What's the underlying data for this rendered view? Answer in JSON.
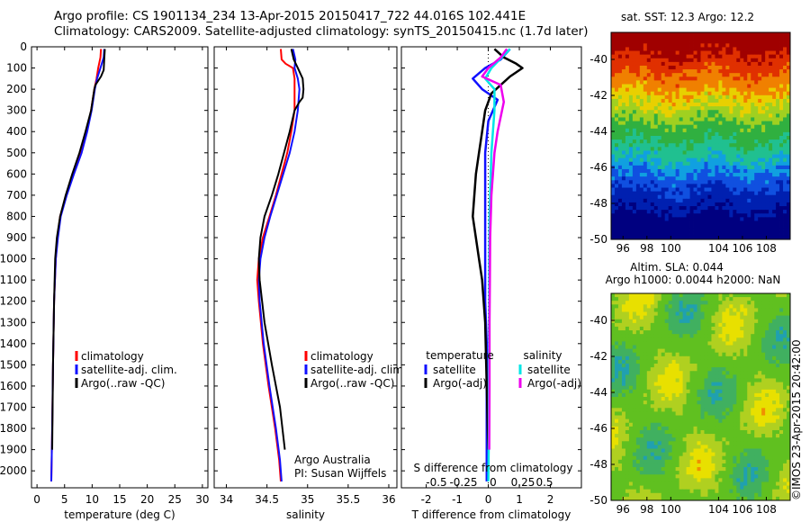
{
  "header": {
    "line1": "Argo profile: CS 1901134_234 13-Apr-2015 20150417_722 44.016S 102.441E",
    "line2": "Climatology: CARS2009. Satellite-adjusted climatology: synTS_20150415.nc (1.7d later)"
  },
  "colors": {
    "climatology": "#ff0000",
    "satellite": "#1010ff",
    "argo": "#000000",
    "sat_salinity": "#00e6e6",
    "argo_salinity": "#ee00ee"
  },
  "chart_data": [
    {
      "type": "line",
      "id": "temperature",
      "xlabel": "temperature (deg C)",
      "ylabel": "",
      "xlim": [
        -1,
        31
      ],
      "ylim": [
        2080,
        0
      ],
      "xticks": [
        0,
        5,
        10,
        15,
        20,
        25,
        30
      ],
      "yticks": [
        0,
        100,
        200,
        300,
        400,
        500,
        600,
        700,
        800,
        900,
        1000,
        1100,
        1200,
        1300,
        1400,
        1500,
        1600,
        1700,
        1800,
        1900,
        2000
      ],
      "legend": [
        "climatology",
        "satellite-adj. clim.",
        "Argo(..raw -QC)"
      ],
      "series": [
        {
          "name": "climatology",
          "color": "#ff0000",
          "width": 2,
          "x": [
            11.6,
            11.5,
            11.1,
            10.8,
            10.4,
            9.8,
            9.0,
            7.9,
            6.5,
            5.3,
            4.2,
            3.7,
            3.4,
            3.1,
            2.9,
            2.75,
            2.6
          ],
          "y": [
            10,
            50,
            100,
            150,
            200,
            300,
            400,
            500,
            600,
            700,
            800,
            900,
            1000,
            1200,
            1500,
            1800,
            2050
          ]
        },
        {
          "name": "satellite-adj. clim.",
          "color": "#1010ff",
          "width": 2,
          "x": [
            12.2,
            12.1,
            11.5,
            10.9,
            10.5,
            9.9,
            9.1,
            8.1,
            6.7,
            5.4,
            4.3,
            3.8,
            3.4,
            3.1,
            2.9,
            2.75,
            2.6
          ],
          "y": [
            10,
            50,
            100,
            150,
            200,
            300,
            400,
            500,
            600,
            700,
            800,
            900,
            1000,
            1200,
            1500,
            1800,
            2050
          ]
        },
        {
          "name": "Argo(..raw -QC)",
          "color": "#000000",
          "width": 2,
          "x": [
            12.3,
            12.2,
            12.1,
            11.6,
            10.6,
            10.4,
            9.8,
            8.8,
            7.7,
            6.4,
            5.2,
            4.2,
            3.6,
            3.3,
            3.1,
            2.9,
            2.75
          ],
          "y": [
            10,
            60,
            110,
            140,
            180,
            200,
            300,
            400,
            500,
            600,
            700,
            800,
            900,
            1000,
            1200,
            1500,
            1900
          ]
        }
      ]
    },
    {
      "type": "line",
      "id": "salinity",
      "xlabel": "salinity",
      "xlim": [
        33.85,
        36.1
      ],
      "ylim": [
        2080,
        0
      ],
      "xticks": [
        34,
        34.5,
        35,
        35.5,
        36
      ],
      "legend": [
        "climatology",
        "satellite-adj. clim.",
        "Argo(..raw -QC)"
      ],
      "annotation": [
        "Argo Australia",
        "PI: Susan Wijffels"
      ],
      "series": [
        {
          "name": "climatology",
          "color": "#ff0000",
          "width": 2,
          "x": [
            34.67,
            34.68,
            34.73,
            34.82,
            34.84,
            34.84,
            34.8,
            34.75,
            34.68,
            34.61,
            34.53,
            34.45,
            34.4,
            34.38,
            34.4,
            34.45,
            34.52,
            34.6,
            34.65,
            34.67
          ],
          "y": [
            10,
            60,
            80,
            100,
            150,
            300,
            400,
            500,
            600,
            700,
            800,
            900,
            1000,
            1100,
            1200,
            1400,
            1600,
            1800,
            1950,
            2050
          ]
        },
        {
          "name": "satellite-adj. clim.",
          "color": "#1010ff",
          "width": 2,
          "x": [
            34.82,
            34.85,
            34.84,
            34.88,
            34.9,
            34.88,
            34.84,
            34.78,
            34.7,
            34.62,
            34.54,
            34.47,
            34.42,
            34.4,
            34.41,
            34.46,
            34.53,
            34.61,
            34.66,
            34.68
          ],
          "y": [
            10,
            60,
            100,
            150,
            200,
            300,
            400,
            500,
            600,
            700,
            800,
            900,
            1000,
            1100,
            1200,
            1400,
            1600,
            1800,
            1950,
            2050
          ]
        },
        {
          "name": "Argo(..raw -QC)",
          "color": "#000000",
          "width": 2,
          "x": [
            34.8,
            34.83,
            34.88,
            34.94,
            34.95,
            34.94,
            34.9,
            34.84,
            34.78,
            34.71,
            34.64,
            34.56,
            34.47,
            34.42,
            34.4,
            34.41,
            34.47,
            34.56,
            34.66,
            34.72
          ],
          "y": [
            10,
            60,
            100,
            150,
            200,
            240,
            260,
            300,
            400,
            500,
            600,
            700,
            800,
            900,
            1000,
            1100,
            1300,
            1500,
            1700,
            1900
          ]
        }
      ]
    },
    {
      "type": "line",
      "id": "differences",
      "xlabel": "T difference from climatology",
      "top_label": "S difference from climatology",
      "xlim": [
        -2.8,
        3.0
      ],
      "ylim": [
        2080,
        0
      ],
      "xticks": [
        -2,
        -1,
        0,
        1,
        2
      ],
      "top_ticks": [
        "-0.5",
        "-0.25",
        "0",
        "0.25",
        "0.5"
      ],
      "legend_titles": [
        "temperature",
        "salinity"
      ],
      "legend": [
        "satellite",
        "Argo(-adj)",
        "satellite",
        "Argo(-adj)"
      ],
      "series": [
        {
          "name": "satellite",
          "group": "temperature",
          "color": "#1010ff",
          "width": 2.5,
          "x": [
            0.7,
            0.4,
            -0.1,
            -0.5,
            -0.2,
            0.3,
            0.0,
            -0.1,
            -0.1,
            -0.1,
            -0.1,
            -0.1,
            -0.1,
            -0.1,
            -0.05,
            -0.05,
            -0.05,
            -0.05,
            -0.05
          ],
          "y": [
            10,
            60,
            100,
            150,
            200,
            250,
            350,
            500,
            700,
            800,
            900,
            1000,
            1100,
            1200,
            1400,
            1600,
            1800,
            1950,
            2050
          ]
        },
        {
          "name": "Argo(-adj)",
          "group": "temperature",
          "color": "#000000",
          "width": 2.5,
          "dashed_to": 1000,
          "x": [
            0.2,
            0.5,
            0.9,
            1.1,
            0.7,
            0.4,
            0.1,
            -0.1,
            -0.2,
            -0.3,
            -0.4,
            -0.5,
            -0.3,
            -0.2,
            -0.1,
            -0.05,
            0.0
          ],
          "y": [
            10,
            50,
            80,
            100,
            140,
            180,
            220,
            300,
            400,
            500,
            600,
            800,
            1000,
            1100,
            1300,
            1600,
            1900
          ]
        },
        {
          "name": "satellite",
          "group": "salinity",
          "color": "#00e6e6",
          "width": 2.5,
          "x": [
            0.7,
            0.5,
            0.1,
            -0.1,
            0.2,
            0.2,
            0.15,
            0.1,
            0.08,
            0.06,
            0.04,
            0.03,
            0.03,
            0.02,
            0.02,
            0.0
          ],
          "y": [
            10,
            40,
            100,
            150,
            200,
            300,
            400,
            500,
            600,
            700,
            800,
            1000,
            1200,
            1500,
            1800,
            2050
          ]
        },
        {
          "name": "Argo(-adj)",
          "group": "salinity",
          "color": "#ee00ee",
          "width": 2.5,
          "x": [
            0.6,
            0.4,
            0.0,
            -0.2,
            0.4,
            0.5,
            0.3,
            0.2,
            0.15,
            0.1,
            0.08,
            0.06,
            0.05,
            0.04,
            0.04,
            0.03
          ],
          "y": [
            10,
            50,
            100,
            140,
            180,
            260,
            400,
            500,
            600,
            700,
            800,
            900,
            1100,
            1300,
            1600,
            1900
          ]
        }
      ]
    },
    {
      "type": "heatmap",
      "id": "sst_map",
      "title": "sat. SST: 12.3 Argo: 12.2",
      "xlim": [
        95,
        110
      ],
      "ylim": [
        -50,
        -38.5
      ],
      "xticks": [
        96,
        98,
        100,
        104,
        106,
        108
      ],
      "xtick_labels": [
        "96",
        "98",
        "100",
        "104",
        "106",
        "108"
      ],
      "yticks": [
        -40,
        -42,
        -44,
        -46,
        -48,
        -50
      ]
    },
    {
      "type": "heatmap",
      "id": "sla_map",
      "title": "Altim. SLA: 0.044",
      "subtitle": "Argo h1000: 0.0044 h2000: NaN",
      "xlim": [
        95,
        110
      ],
      "ylim": [
        -50,
        -38.5
      ],
      "xticks": [
        96,
        98,
        100,
        104,
        106,
        108
      ],
      "xtick_labels": [
        "96",
        "98",
        "100",
        "104",
        "106",
        "108"
      ],
      "yticks": [
        -40,
        -42,
        -44,
        -46,
        -48,
        -50
      ],
      "side_label": "©IMOS 23-Apr-2015 20:42:00"
    }
  ]
}
